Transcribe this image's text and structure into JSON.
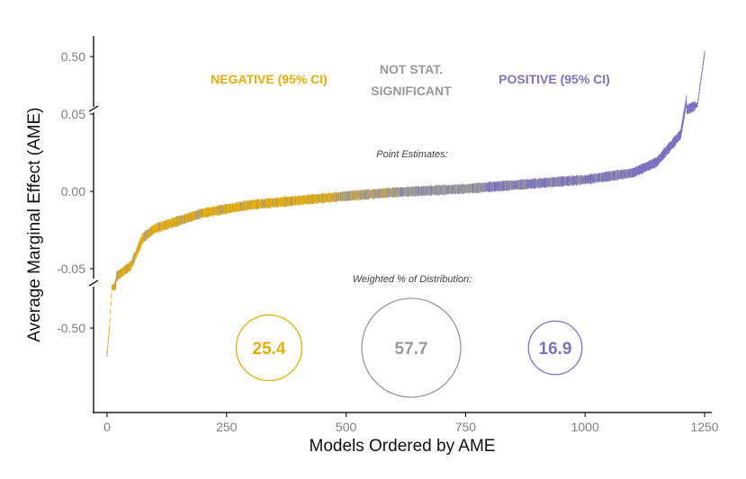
{
  "chart_data": {
    "type": "scatter",
    "xlabel": "Models Ordered by AME",
    "ylabel": "Average Marginal Effect (AME)",
    "xlim": [
      0,
      1250
    ],
    "x_ticks": [
      "0",
      "250",
      "500",
      "750",
      "1000",
      "1250"
    ],
    "x_tick_values": [
      0,
      250,
      500,
      750,
      1000,
      1250
    ],
    "y_ticks": [
      "0.50",
      "0.05",
      "0.00",
      "-0.05",
      "-0.50"
    ],
    "y_tick_values": [
      0.5,
      0.05,
      0.0,
      -0.05,
      -0.5
    ],
    "y_axis_broken": true,
    "grid": false,
    "categories": {
      "negative": {
        "label": "NEGATIVE (95% CI)",
        "color": "#e6ad0a"
      },
      "not_significant": {
        "label_line1": "NOT STAT.",
        "label_line2": "SIGNIFICANT",
        "color": "#999999"
      },
      "positive": {
        "label": "POSITIVE (95% CI)",
        "color": "#7c72c0"
      }
    },
    "point_estimates_label": "Point Estimates:",
    "distribution_label": "Weighted % of Distribution:",
    "distribution": [
      {
        "category": "negative",
        "value": 25.4,
        "label": "25.4"
      },
      {
        "category": "not_significant",
        "value": 57.7,
        "label": "57.7"
      },
      {
        "category": "positive",
        "value": 16.9,
        "label": "16.9"
      }
    ],
    "curve_points": [
      [
        0,
        -0.78
      ],
      [
        5,
        -0.5
      ],
      [
        10,
        -0.08
      ],
      [
        20,
        -0.055
      ],
      [
        50,
        -0.048
      ],
      [
        75,
        -0.03
      ],
      [
        100,
        -0.024
      ],
      [
        200,
        -0.014
      ],
      [
        300,
        -0.0087
      ],
      [
        500,
        -0.003
      ],
      [
        600,
        -0.0006
      ],
      [
        750,
        0.0017
      ],
      [
        1000,
        0.0076
      ],
      [
        1100,
        0.012
      ],
      [
        1150,
        0.019
      ],
      [
        1200,
        0.037
      ],
      [
        1235,
        0.1
      ],
      [
        1250,
        0.53
      ]
    ]
  }
}
